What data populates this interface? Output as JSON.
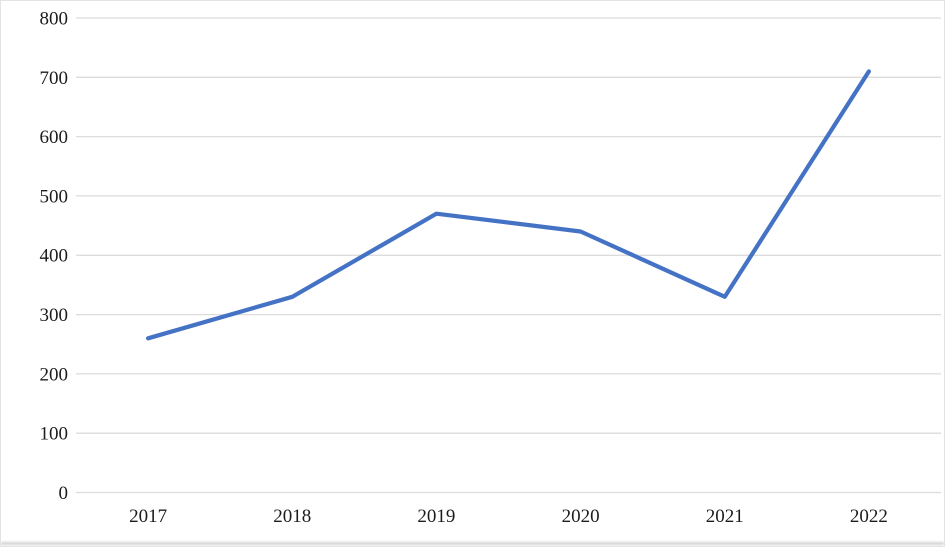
{
  "chart_data": {
    "type": "line",
    "title": "",
    "xlabel": "",
    "ylabel": "",
    "categories": [
      "2017",
      "2018",
      "2019",
      "2020",
      "2021",
      "2022"
    ],
    "series": [
      {
        "values": [
          260,
          330,
          470,
          440,
          330,
          710
        ]
      }
    ],
    "ylim": [
      0,
      800
    ],
    "yticks": [
      0,
      100,
      200,
      300,
      400,
      500,
      600,
      700,
      800
    ],
    "grid": "horizontal",
    "legend": "none",
    "line_color": "#4472C4",
    "gridline_color": "#dcdcdc",
    "tick_label_color": "#1c1c1c"
  }
}
